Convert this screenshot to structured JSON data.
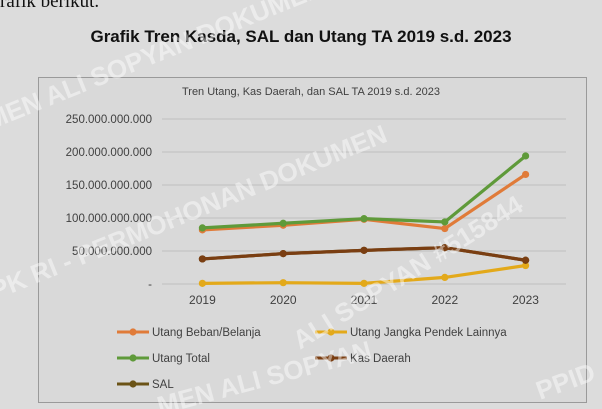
{
  "document": {
    "top_text": "rafik berikut.",
    "heading": "Grafik Tren Kasda, SAL dan Utang TA 2019 s.d. 2023",
    "watermark_lines": [
      "MEN ALI SOPYAN DOKUMEN ALI SOPYAN",
      "PK RI - PERMOHONAN DOKUMEN",
      "ALI SOPYAN #515844",
      "MEN ALI SOPYAN",
      "PPID"
    ]
  },
  "chart_data": {
    "type": "line",
    "title": "Tren Utang, Kas Daerah, dan SAL TA 2019 s.d. 2023",
    "categories": [
      "2019",
      "2020",
      "2021",
      "2022",
      "2023"
    ],
    "ylim": [
      0,
      250000000000
    ],
    "yticks": [
      0,
      50000000000,
      100000000000,
      150000000000,
      200000000000,
      250000000000
    ],
    "ytick_labels": [
      "-",
      "50.000.000.000",
      "100.000.000.000",
      "150.000.000.000",
      "200.000.000.000",
      "250.000.000.000"
    ],
    "grid": true,
    "legend_position": "bottom",
    "series": [
      {
        "name": "Utang Beban/Belanja",
        "color": "#e07b39",
        "values": [
          82000000000,
          89000000000,
          98000000000,
          84000000000,
          166000000000
        ]
      },
      {
        "name": "Utang Jangka Pendek Lainnya",
        "color": "#e3a91a",
        "values": [
          1000000000,
          2000000000,
          1000000000,
          10000000000,
          28000000000
        ]
      },
      {
        "name": "Utang Total",
        "color": "#5f9a3a",
        "values": [
          85000000000,
          92000000000,
          99000000000,
          94000000000,
          194000000000
        ]
      },
      {
        "name": "Kas Daerah",
        "color": "#7a3e12",
        "values": [
          38000000000,
          46000000000,
          51000000000,
          55000000000,
          36000000000
        ]
      },
      {
        "name": "SAL",
        "color": "#6b5316",
        "values": [
          38000000000,
          46000000000,
          51000000000,
          55000000000,
          36000000000
        ]
      }
    ]
  }
}
